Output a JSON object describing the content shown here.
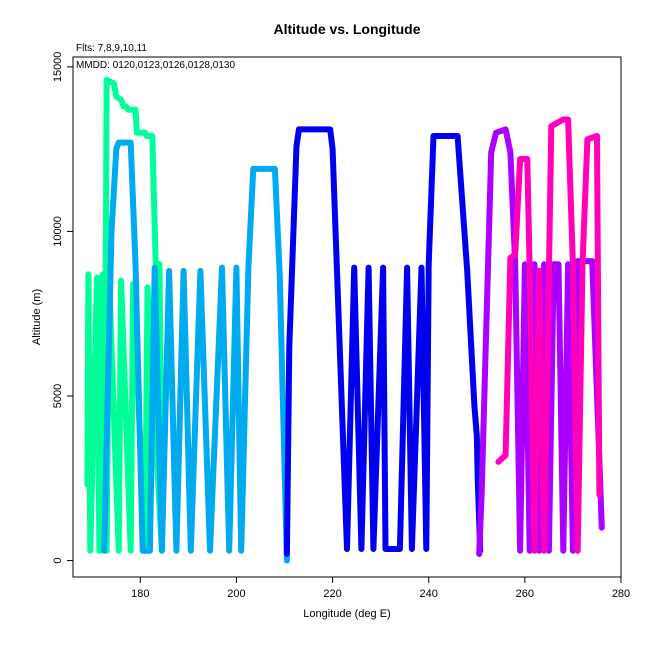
{
  "chart_data": {
    "type": "line",
    "title": "Altitude vs. Longitude",
    "xlabel": "Longitude (deg E)",
    "ylabel": "Altitude (m)",
    "xlim": [
      166,
      280
    ],
    "ylim": [
      -500,
      15300
    ],
    "xticks": [
      180,
      200,
      220,
      240,
      260,
      280
    ],
    "yticks": [
      0,
      5000,
      10000,
      15000
    ],
    "grid": false,
    "annotations": [
      "Flts: 7,8,9,10,11",
      "MMDD: 0120,0123,0126,0128,0130"
    ],
    "series": [
      {
        "color": "#00ff99",
        "points": [
          [
            169,
            2300
          ],
          [
            169.2,
            8700
          ],
          [
            169.6,
            300
          ],
          [
            171,
            8600
          ],
          [
            171.5,
            300
          ],
          [
            172.2,
            8700
          ],
          [
            172.6,
            300
          ],
          [
            173,
            14600
          ],
          [
            174.5,
            14500
          ],
          [
            175,
            14100
          ],
          [
            176,
            14000
          ],
          [
            176.5,
            13800
          ],
          [
            177,
            13800
          ],
          [
            177.5,
            13700
          ],
          [
            179,
            13700
          ],
          [
            179.3,
            13000
          ],
          [
            181,
            13000
          ],
          [
            181.3,
            12900
          ],
          [
            182.5,
            12900
          ],
          [
            183.2,
            9000
          ],
          [
            184,
            9000
          ],
          [
            184.5,
            300
          ],
          [
            181.5,
            8300
          ],
          [
            181,
            300
          ],
          [
            178.5,
            8400
          ],
          [
            178,
            300
          ],
          [
            176,
            8500
          ],
          [
            175.5,
            300
          ],
          [
            173.5,
            8600
          ],
          [
            173,
            300
          ]
        ]
      },
      {
        "color": "#00aaee",
        "points": [
          [
            172.5,
            300
          ],
          [
            174,
            10000
          ],
          [
            175,
            12500
          ],
          [
            175.5,
            12700
          ],
          [
            178,
            12700
          ],
          [
            179,
            9000
          ],
          [
            180.5,
            300
          ],
          [
            182,
            300
          ],
          [
            183,
            8900
          ],
          [
            184.5,
            300
          ],
          [
            186,
            8800
          ],
          [
            187.5,
            300
          ],
          [
            189,
            8800
          ],
          [
            190.5,
            300
          ],
          [
            192.5,
            8800
          ],
          [
            194.5,
            300
          ],
          [
            197,
            8900
          ],
          [
            198.5,
            300
          ],
          [
            200,
            8900
          ],
          [
            201,
            300
          ],
          [
            202.5,
            9000
          ],
          [
            203.5,
            11900
          ],
          [
            208,
            11900
          ],
          [
            209,
            8700
          ],
          [
            210.5,
            0
          ]
        ]
      },
      {
        "color": "#0000ee",
        "points": [
          [
            210.5,
            200
          ],
          [
            211,
            6500
          ],
          [
            212.5,
            12600
          ],
          [
            213,
            13100
          ],
          [
            219.5,
            13100
          ],
          [
            220,
            12500
          ],
          [
            223,
            350
          ],
          [
            224.5,
            8900
          ],
          [
            226,
            350
          ],
          [
            227.5,
            8900
          ],
          [
            228.5,
            350
          ],
          [
            230.5,
            8900
          ],
          [
            231,
            350
          ],
          [
            234,
            350
          ],
          [
            235.5,
            8900
          ],
          [
            236.5,
            350
          ],
          [
            238.5,
            8900
          ],
          [
            239.5,
            350
          ],
          [
            240,
            9000
          ],
          [
            241,
            12900
          ],
          [
            246,
            12900
          ],
          [
            248,
            8800
          ],
          [
            249.5,
            4700
          ],
          [
            250,
            3800
          ],
          [
            250.2,
            2400
          ],
          [
            250.7,
            300
          ]
        ]
      },
      {
        "color": "#aa00ff",
        "points": [
          [
            250.5,
            200
          ],
          [
            251,
            2000
          ],
          [
            253,
            12400
          ],
          [
            254,
            13000
          ],
          [
            256,
            13100
          ],
          [
            257,
            12400
          ],
          [
            258,
            9000
          ],
          [
            259,
            300
          ],
          [
            260,
            9000
          ],
          [
            261,
            300
          ],
          [
            262,
            9000
          ],
          [
            263,
            300
          ],
          [
            264,
            9000
          ],
          [
            265,
            300
          ],
          [
            266,
            9000
          ],
          [
            267,
            9000
          ],
          [
            268,
            300
          ],
          [
            269,
            9000
          ],
          [
            270,
            300
          ],
          [
            271,
            9100
          ],
          [
            274,
            9100
          ],
          [
            276,
            1000
          ]
        ]
      },
      {
        "color": "#ff00bb",
        "points": [
          [
            254.5,
            3000
          ],
          [
            256,
            3200
          ],
          [
            257,
            9200
          ],
          [
            258,
            9300
          ],
          [
            259,
            12200
          ],
          [
            260.5,
            12200
          ],
          [
            261,
            8800
          ],
          [
            262,
            300
          ],
          [
            263,
            8800
          ],
          [
            264,
            300
          ],
          [
            265,
            8700
          ],
          [
            265.5,
            13200
          ],
          [
            268,
            13400
          ],
          [
            269,
            13400
          ],
          [
            270,
            9000
          ],
          [
            271,
            300
          ],
          [
            272,
            9000
          ],
          [
            273,
            12800
          ],
          [
            275,
            12900
          ],
          [
            275.5,
            2000
          ]
        ]
      }
    ]
  }
}
